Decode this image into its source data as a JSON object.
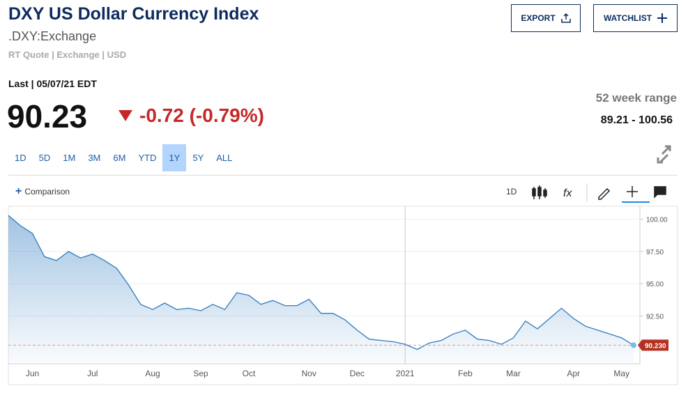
{
  "header": {
    "title": "DXY US Dollar Currency Index",
    "symbol": ".DXY:Exchange",
    "meta": "RT Quote | Exchange | USD",
    "export": "EXPORT",
    "watchlist": "WATCHLIST"
  },
  "quote": {
    "last": "Last | 05/07/21 EDT",
    "price": "90.23",
    "change": "-0.72 (-0.79%)",
    "range_label": "52 week range",
    "range": "89.21 - 100.56"
  },
  "range_tabs": {
    "items": [
      "1D",
      "5D",
      "1M",
      "3M",
      "6M",
      "YTD",
      "1Y",
      "5Y",
      "ALL"
    ],
    "active": 6
  },
  "toolbar": {
    "comparison": "Comparison",
    "interval": "1D"
  },
  "chart_data": {
    "type": "area",
    "categories": [
      null,
      null,
      "Jun",
      null,
      null,
      null,
      null,
      "Jul",
      null,
      null,
      null,
      null,
      "Aug",
      null,
      null,
      null,
      "Sep",
      null,
      null,
      null,
      "Oct",
      null,
      null,
      null,
      null,
      "Nov",
      null,
      null,
      null,
      "Dec",
      null,
      null,
      null,
      "2021",
      null,
      null,
      null,
      null,
      "Feb",
      null,
      null,
      null,
      "Mar",
      null,
      null,
      null,
      null,
      "Apr",
      null,
      null,
      null,
      "May",
      null
    ],
    "values": [
      100.3,
      99.5,
      98.9,
      97.1,
      96.8,
      97.5,
      97.0,
      97.3,
      96.8,
      96.2,
      94.9,
      93.4,
      93.0,
      93.5,
      93.0,
      93.1,
      92.9,
      93.4,
      93.0,
      94.3,
      94.1,
      93.4,
      93.7,
      93.3,
      93.3,
      93.8,
      92.7,
      92.7,
      92.2,
      91.4,
      90.7,
      90.6,
      90.5,
      90.3,
      89.9,
      90.4,
      90.6,
      91.1,
      91.4,
      90.7,
      90.6,
      90.3,
      90.8,
      92.1,
      91.5,
      92.3,
      93.1,
      92.3,
      91.7,
      91.4,
      91.1,
      90.8,
      90.23
    ],
    "color": "#2f7bbf",
    "ylim": [
      88.9,
      100.9
    ],
    "yticks": [
      {
        "value": 92.5,
        "label": "92.50"
      },
      {
        "value": 95,
        "label": "95.00"
      },
      {
        "value": 97.5,
        "label": "97.50"
      },
      {
        "value": 100,
        "label": "100.00"
      }
    ],
    "current": {
      "value": 90.23,
      "label": "90.230"
    },
    "grid": true
  }
}
